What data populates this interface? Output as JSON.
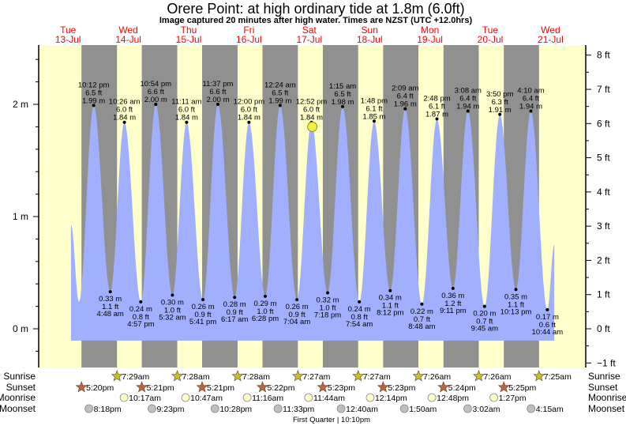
{
  "chart_data": {
    "type": "area",
    "title": "Orere Point: at high  ordinary tide at 1.8m (6.0ft)",
    "subtitle": "Image captured 20 minutes after high water. Times are NZST (UTC +12.0hrs)",
    "days": [
      {
        "name": "Tue",
        "date": "13-Jul"
      },
      {
        "name": "Wed",
        "date": "14-Jul"
      },
      {
        "name": "Thu",
        "date": "15-Jul"
      },
      {
        "name": "Fri",
        "date": "16-Jul"
      },
      {
        "name": "Sat",
        "date": "17-Jul"
      },
      {
        "name": "Sun",
        "date": "18-Jul"
      },
      {
        "name": "Mon",
        "date": "19-Jul"
      },
      {
        "name": "Tue",
        "date": "20-Jul"
      },
      {
        "name": "Wed",
        "date": "21-Jul"
      }
    ],
    "left_axis": {
      "unit": "m",
      "ylim": [
        -0.3,
        2.5
      ],
      "ticks": [
        "0 m",
        "1 m",
        "2 m"
      ],
      "tick_values": [
        0,
        1,
        2
      ]
    },
    "right_axis": {
      "unit": "ft",
      "ticks": [
        "−1 ft",
        "0 ft",
        "1 ft",
        "2 ft",
        "3 ft",
        "4 ft",
        "5 ft",
        "6 ft",
        "7 ft",
        "8 ft"
      ],
      "tick_values": [
        -1,
        0,
        1,
        2,
        3,
        4,
        5,
        6,
        7,
        8
      ]
    },
    "curve_start": {
      "date": "13-Jul",
      "time": "1:10 pm",
      "m": 0.93
    },
    "curve_end": {
      "date": "21-Jul",
      "time": "1:30 pm",
      "m": 0.75
    },
    "unlabeled_low": {
      "date": "13-Jul",
      "time": "4:20 pm",
      "m": 0.24
    },
    "extremes": [
      {
        "type": "high",
        "date": "13-Jul",
        "time": "10:12 pm",
        "ft": "6.5 ft",
        "m": "1.99 m"
      },
      {
        "type": "low",
        "date": "14-Jul",
        "time": "4:48 am",
        "ft": "1.1 ft",
        "m": "0.33 m"
      },
      {
        "type": "high",
        "date": "14-Jul",
        "time": "10:26 am",
        "ft": "6.0 ft",
        "m": "1.84 m"
      },
      {
        "type": "low",
        "date": "14-Jul",
        "time": "4:57 pm",
        "ft": "0.8 ft",
        "m": "0.24 m"
      },
      {
        "type": "high",
        "date": "14-Jul",
        "time": "10:54 pm",
        "ft": "6.6 ft",
        "m": "2.00 m"
      },
      {
        "type": "low",
        "date": "15-Jul",
        "time": "5:32 am",
        "ft": "1.0 ft",
        "m": "0.30 m"
      },
      {
        "type": "high",
        "date": "15-Jul",
        "time": "11:11 am",
        "ft": "6.0 ft",
        "m": "1.84 m"
      },
      {
        "type": "low",
        "date": "15-Jul",
        "time": "5:41 pm",
        "ft": "0.9 ft",
        "m": "0.26 m"
      },
      {
        "type": "high",
        "date": "15-Jul",
        "time": "11:37 pm",
        "ft": "6.6 ft",
        "m": "2.00 m"
      },
      {
        "type": "low",
        "date": "16-Jul",
        "time": "6:17 am",
        "ft": "0.9 ft",
        "m": "0.28 m"
      },
      {
        "type": "high",
        "date": "16-Jul",
        "time": "12:00 pm",
        "ft": "6.0 ft",
        "m": "1.84 m"
      },
      {
        "type": "low",
        "date": "16-Jul",
        "time": "6:28 pm",
        "ft": "1.0 ft",
        "m": "0.29 m"
      },
      {
        "type": "high",
        "date": "17-Jul",
        "time": "12:24 am",
        "ft": "6.5 ft",
        "m": "1.99 m"
      },
      {
        "type": "low",
        "date": "17-Jul",
        "time": "7:04 am",
        "ft": "0.9 ft",
        "m": "0.26 m"
      },
      {
        "type": "high",
        "date": "17-Jul",
        "time": "12:52 pm",
        "ft": "6.0 ft",
        "m": "1.84 m"
      },
      {
        "type": "low",
        "date": "17-Jul",
        "time": "7:18 pm",
        "ft": "1.0 ft",
        "m": "0.32 m"
      },
      {
        "type": "high",
        "date": "18-Jul",
        "time": "1:15 am",
        "ft": "6.5 ft",
        "m": "1.98 m"
      },
      {
        "type": "low",
        "date": "18-Jul",
        "time": "7:54 am",
        "ft": "0.8 ft",
        "m": "0.24 m"
      },
      {
        "type": "high",
        "date": "18-Jul",
        "time": "1:48 pm",
        "ft": "6.1 ft",
        "m": "1.85 m"
      },
      {
        "type": "low",
        "date": "18-Jul",
        "time": "8:12 pm",
        "ft": "1.1 ft",
        "m": "0.34 m"
      },
      {
        "type": "high",
        "date": "19-Jul",
        "time": "2:09 am",
        "ft": "6.4 ft",
        "m": "1.96 m"
      },
      {
        "type": "low",
        "date": "19-Jul",
        "time": "8:48 am",
        "ft": "0.7 ft",
        "m": "0.22 m"
      },
      {
        "type": "high",
        "date": "19-Jul",
        "time": "2:48 pm",
        "ft": "6.1 ft",
        "m": "1.87 m"
      },
      {
        "type": "low",
        "date": "19-Jul",
        "time": "9:11 pm",
        "ft": "1.2 ft",
        "m": "0.36 m"
      },
      {
        "type": "high",
        "date": "20-Jul",
        "time": "3:08 am",
        "ft": "6.4 ft",
        "m": "1.94 m"
      },
      {
        "type": "low",
        "date": "20-Jul",
        "time": "9:45 am",
        "ft": "0.7 ft",
        "m": "0.20 m"
      },
      {
        "type": "high",
        "date": "20-Jul",
        "time": "3:50 pm",
        "ft": "6.3 ft",
        "m": "1.91 m"
      },
      {
        "type": "low",
        "date": "20-Jul",
        "time": "10:13 pm",
        "ft": "1.1 ft",
        "m": "0.35 m"
      },
      {
        "type": "high",
        "date": "21-Jul",
        "time": "4:10 am",
        "ft": "6.4 ft",
        "m": "1.94 m"
      },
      {
        "type": "low",
        "date": "21-Jul",
        "time": "10:44 am",
        "ft": "0.6 ft",
        "m": "0.17 m"
      }
    ],
    "current": {
      "date": "17-Jul",
      "time": "1:12 pm",
      "m": 1.8
    },
    "rows": {
      "sunrise": {
        "label": "Sunrise",
        "events": [
          {
            "date": "14-Jul",
            "time": "7:29am"
          },
          {
            "date": "15-Jul",
            "time": "7:28am"
          },
          {
            "date": "16-Jul",
            "time": "7:28am"
          },
          {
            "date": "17-Jul",
            "time": "7:27am"
          },
          {
            "date": "18-Jul",
            "time": "7:27am"
          },
          {
            "date": "19-Jul",
            "time": "7:26am"
          },
          {
            "date": "20-Jul",
            "time": "7:26am"
          },
          {
            "date": "21-Jul",
            "time": "7:25am"
          }
        ]
      },
      "sunset": {
        "label": "Sunset",
        "events": [
          {
            "date": "13-Jul",
            "time": "5:20pm"
          },
          {
            "date": "14-Jul",
            "time": "5:21pm"
          },
          {
            "date": "15-Jul",
            "time": "5:21pm"
          },
          {
            "date": "16-Jul",
            "time": "5:22pm"
          },
          {
            "date": "17-Jul",
            "time": "5:23pm"
          },
          {
            "date": "18-Jul",
            "time": "5:23pm"
          },
          {
            "date": "19-Jul",
            "time": "5:24pm"
          },
          {
            "date": "20-Jul",
            "time": "5:25pm"
          }
        ]
      },
      "moonrise": {
        "label": "Moonrise",
        "events": [
          {
            "date": "14-Jul",
            "time": "10:17am"
          },
          {
            "date": "15-Jul",
            "time": "10:47am"
          },
          {
            "date": "16-Jul",
            "time": "11:16am"
          },
          {
            "date": "17-Jul",
            "time": "11:44am"
          },
          {
            "date": "18-Jul",
            "time": "12:14pm"
          },
          {
            "date": "19-Jul",
            "time": "12:48pm"
          },
          {
            "date": "20-Jul",
            "time": "1:27pm"
          }
        ]
      },
      "moonset": {
        "label": "Moonset",
        "events": [
          {
            "date": "13-Jul",
            "time": "8:18pm"
          },
          {
            "date": "14-Jul",
            "time": "9:23pm"
          },
          {
            "date": "15-Jul",
            "time": "10:28pm"
          },
          {
            "date": "16-Jul",
            "time": "11:33pm"
          },
          {
            "date": "18-Jul",
            "time": "12:40am"
          },
          {
            "date": "19-Jul",
            "time": "1:50am"
          },
          {
            "date": "20-Jul",
            "time": "3:02am"
          },
          {
            "date": "21-Jul",
            "time": "4:15am"
          }
        ]
      }
    },
    "moon_phase": {
      "date": "17-Jul",
      "time": "10:10pm",
      "label": "First Quarter | 10:10pm"
    },
    "colors": {
      "day": "#ffffcc",
      "night": "#909090",
      "water": "#a0b0ff",
      "day_label": "#ff0000",
      "sunrise": "#c8c030",
      "sunset": "#b86840",
      "moonrise": "#ffffcc",
      "moonset": "#c0c0b8",
      "current_marker": "#f0f040"
    }
  }
}
